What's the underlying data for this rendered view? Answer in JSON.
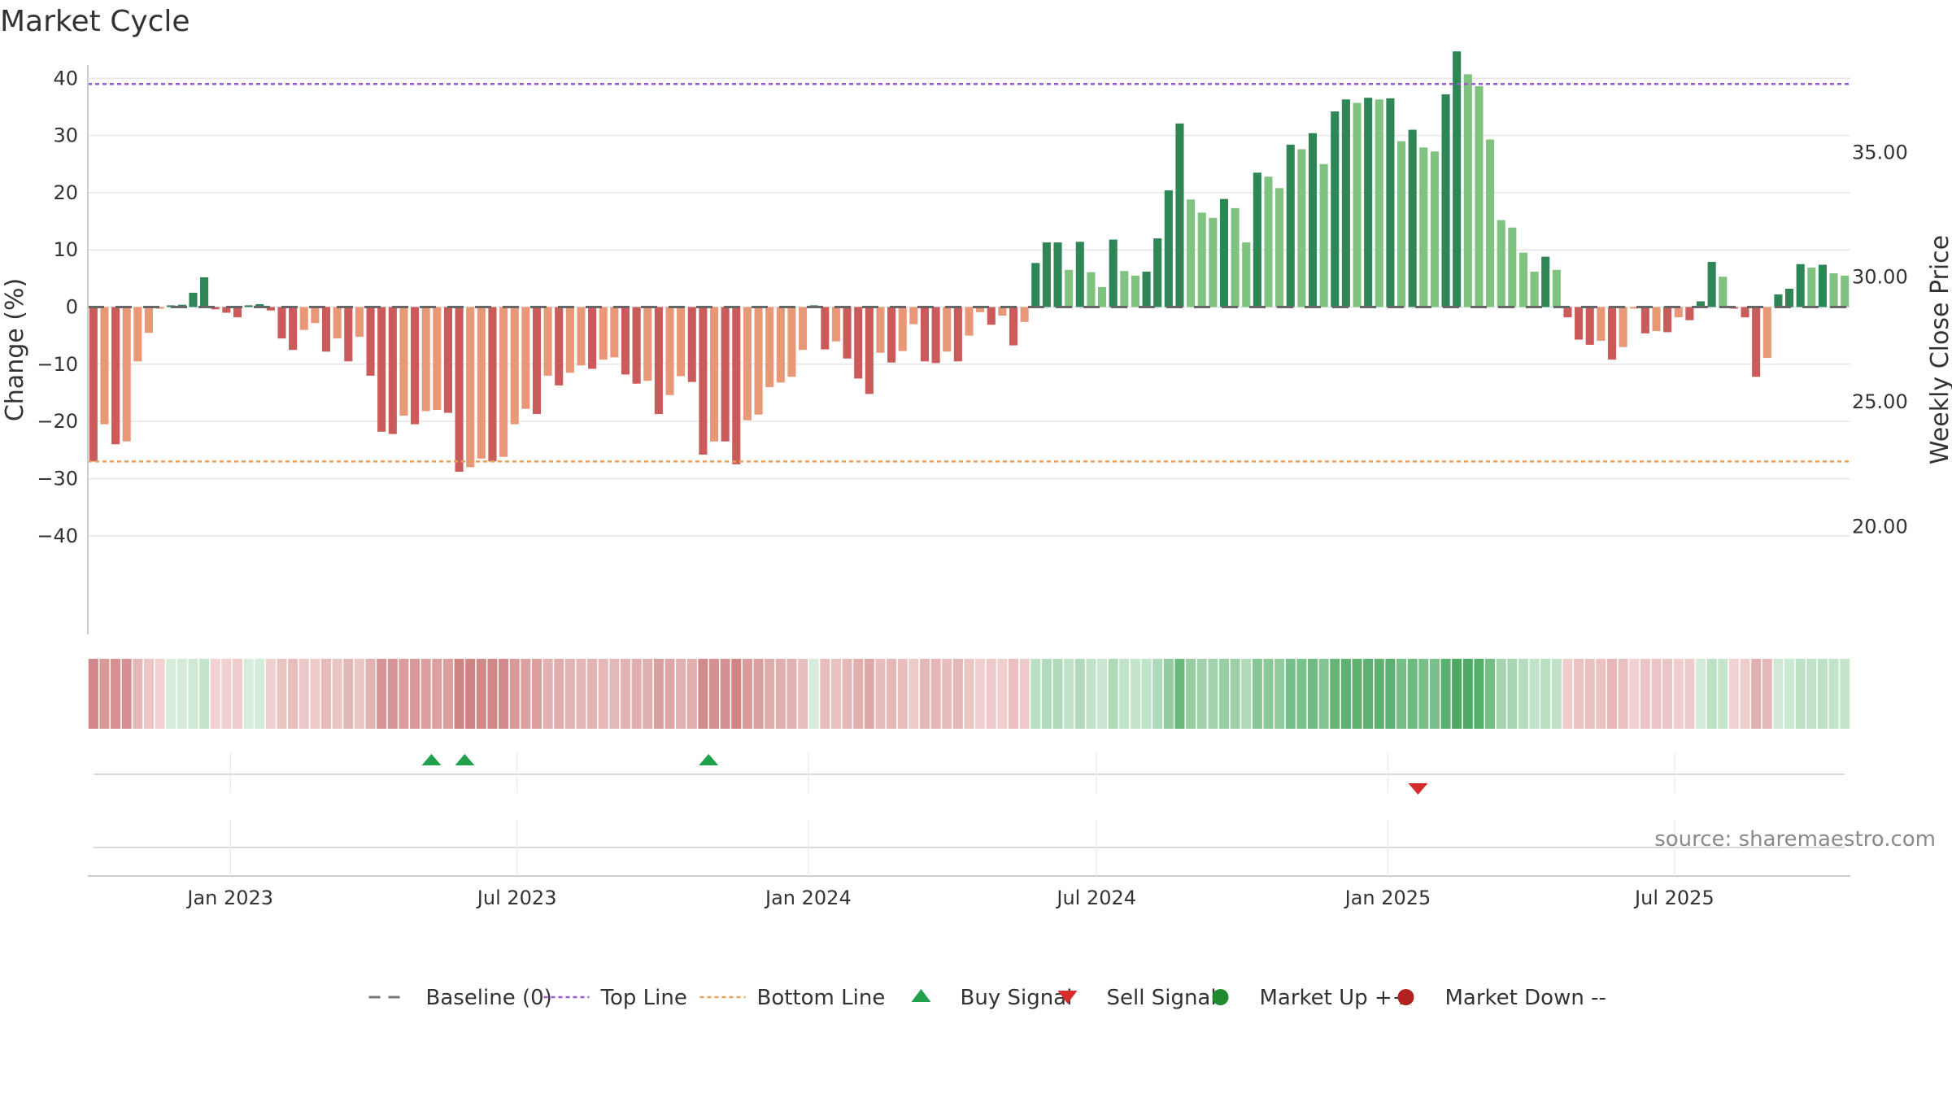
{
  "chart_data": {
    "type": "bar",
    "title": "Market Cycle",
    "ylabel": "Change (%)",
    "y2label": "Weekly Close Price",
    "ylim": [
      -48,
      48
    ],
    "yticks": [
      40,
      30,
      20,
      10,
      0,
      -10,
      -20,
      -30,
      -40
    ],
    "ytick_labels": [
      "40",
      "30",
      "20",
      "10",
      "0",
      "−10",
      "−20",
      "−30",
      "−40"
    ],
    "y2lim": [
      17.8,
      39.8
    ],
    "y2ticks": [
      35,
      30,
      25,
      20
    ],
    "y2tick_labels": [
      "35.00",
      "30.00",
      "25.00",
      "20.00"
    ],
    "grid": true,
    "top_line": 39,
    "bottom_line": -27,
    "baseline": 0,
    "x_start": "2022-10-03",
    "x_end": "2025-10-20",
    "xticks": [
      {
        "date": "2023-01-01",
        "label": "Jan 2023"
      },
      {
        "date": "2023-07-01",
        "label": "Jul 2023"
      },
      {
        "date": "2024-01-01",
        "label": "Jan 2024"
      },
      {
        "date": "2024-07-01",
        "label": "Jul 2024"
      },
      {
        "date": "2025-01-01",
        "label": "Jan 2025"
      },
      {
        "date": "2025-07-01",
        "label": "Jul 2025"
      }
    ],
    "series": [
      {
        "name": "Change (%)",
        "start_week": "2022-10-03",
        "interval_days": 7,
        "values": [
          -27,
          -20.5,
          -24,
          -23.5,
          -9.5,
          -4.5,
          -0.3,
          0.3,
          0.4,
          2.5,
          5.2,
          -0.4,
          -1,
          -1.8,
          0.3,
          0.5,
          -0.6,
          -5.5,
          -7.5,
          -4,
          -2.8,
          -7.8,
          -5.5,
          -9.5,
          -5.2,
          -12,
          -21.8,
          -22.2,
          -19,
          -20.5,
          -18.2,
          -18,
          -18.5,
          -28.8,
          -28,
          -26.5,
          -27,
          -26.2,
          -20.5,
          -17.8,
          -18.7,
          -12,
          -13.7,
          -11.5,
          -10.2,
          -10.8,
          -9.2,
          -8.8,
          -11.8,
          -13.4,
          -12.9,
          -18.7,
          -15.4,
          -12.1,
          -13.1,
          -25.8,
          -23.5,
          -23.5,
          -27.5,
          -19.8,
          -18.8,
          -14,
          -13.2,
          -12.2,
          -7.5,
          0.3,
          -7.4,
          -6,
          -9,
          -12.5,
          -15.2,
          -8,
          -9.7,
          -7.7,
          -3,
          -9.5,
          -9.8,
          -7.8,
          -9.5,
          -5,
          -0.9,
          -3.1,
          -1.5,
          -6.7,
          -2.6,
          7.7,
          11.3,
          11.3,
          6.5,
          11.4,
          6.1,
          3.5,
          11.8,
          6.3,
          5.5,
          6.2,
          12,
          20.4,
          32.1,
          18.8,
          16.5,
          15.6,
          18.9,
          17.3,
          11.3,
          23.5,
          22.8,
          20.8,
          28.4,
          27.6,
          30.4,
          25,
          34.2,
          36.3,
          35.7,
          36.6,
          36.3,
          36.5,
          29,
          31,
          27.9,
          27.2,
          37.2,
          44.7,
          40.7,
          38.6,
          29.3,
          15.2,
          13.9,
          9.5,
          6.2,
          8.8,
          6.5,
          -1.8,
          -5.7,
          -6.6,
          -5.9,
          -9.2,
          -7,
          -0.2,
          -4.6,
          -4.2,
          -4.4,
          -1.8,
          -2.3,
          1,
          7.9,
          5.3,
          -0.2,
          -1.8,
          -12.2,
          -8.9,
          2.2,
          3.2,
          7.5,
          6.9,
          7.4,
          5.9,
          5.5
        ],
        "colors": {
          "strong_up": "#2e8555",
          "weak_up": "#80c27f",
          "strong_down": "#cb5a5a",
          "weak_down": "#e89877"
        }
      }
    ],
    "legend": {
      "position": "bottom",
      "items": [
        {
          "label": "Baseline (0)",
          "kind": "dash",
          "color": "#777777"
        },
        {
          "label": "Top Line",
          "kind": "dot",
          "color": "#9b59d0"
        },
        {
          "label": "Bottom Line",
          "kind": "dot",
          "color": "#e8a05a"
        },
        {
          "label": "Buy Signal",
          "kind": "triangle-up",
          "color": "#22a04b"
        },
        {
          "label": "Sell Signal",
          "kind": "triangle-down",
          "color": "#d62c2c"
        },
        {
          "label": "Market Up ++",
          "kind": "circle",
          "color": "#1f8a2f"
        },
        {
          "label": "Market Down --",
          "kind": "circle",
          "color": "#b22222"
        }
      ]
    },
    "buy_signals": [
      "2023-05-08",
      "2023-05-29",
      "2023-10-30"
    ],
    "sell_signals": [
      "2025-01-20"
    ],
    "market_up": [],
    "market_down": [],
    "source": "source: sharemaestro.com"
  }
}
